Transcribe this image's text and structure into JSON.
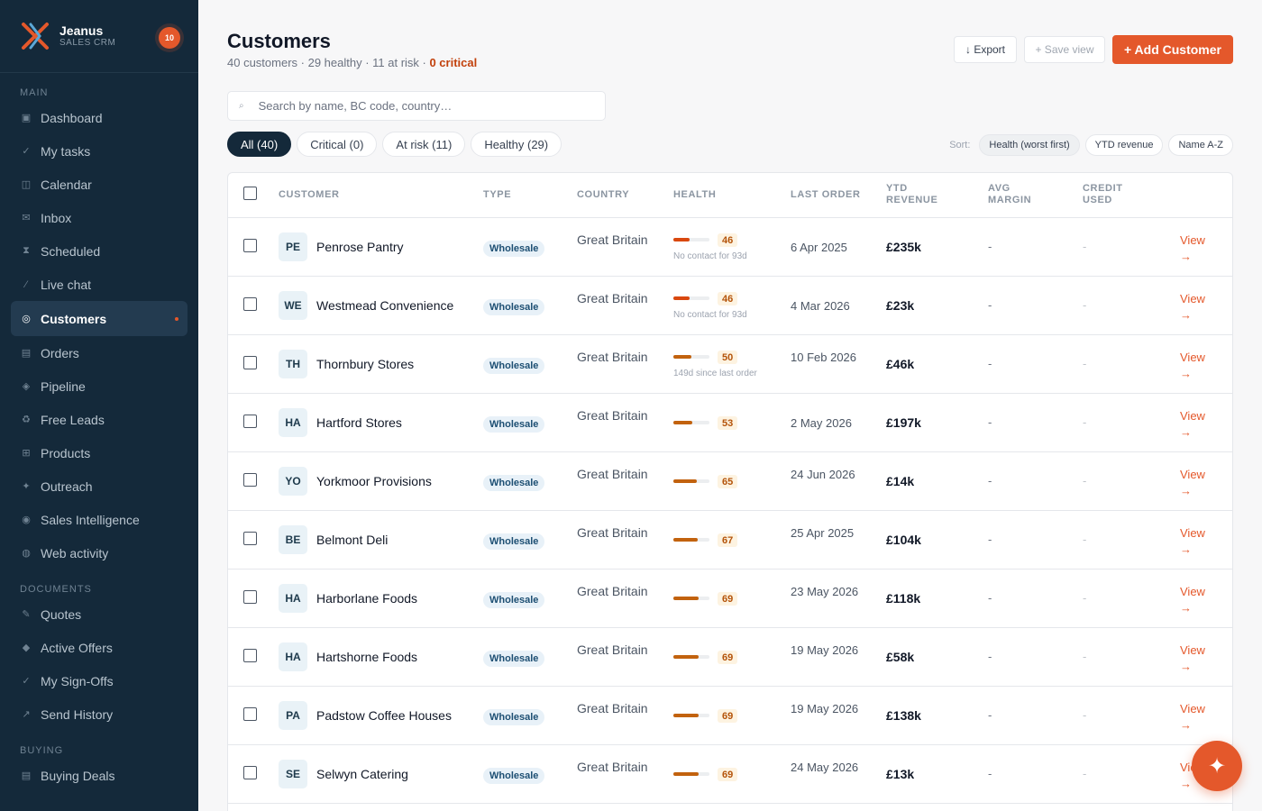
{
  "brand": {
    "name": "Jeanus",
    "subtitle": "SALES CRM",
    "notifications": "10"
  },
  "nav": {
    "main_label": "MAIN",
    "main": [
      {
        "label": "Dashboard",
        "icon": "dashboard-icon",
        "glyph": "▣"
      },
      {
        "label": "My tasks",
        "icon": "check-icon",
        "glyph": "✓"
      },
      {
        "label": "Calendar",
        "icon": "calendar-icon",
        "glyph": "◫"
      },
      {
        "label": "Inbox",
        "icon": "mail-icon",
        "glyph": "✉"
      },
      {
        "label": "Scheduled",
        "icon": "hourglass-icon",
        "glyph": "⧗"
      },
      {
        "label": "Live chat",
        "icon": "chat-icon",
        "glyph": "⁄"
      },
      {
        "label": "Customers",
        "icon": "customers-icon",
        "glyph": "◎",
        "active": true
      },
      {
        "label": "Orders",
        "icon": "orders-icon",
        "glyph": "▤"
      },
      {
        "label": "Pipeline",
        "icon": "pipeline-icon",
        "glyph": "◈"
      },
      {
        "label": "Free Leads",
        "icon": "recycle-icon",
        "glyph": "♻"
      },
      {
        "label": "Products",
        "icon": "grid-icon",
        "glyph": "⊞"
      },
      {
        "label": "Outreach",
        "icon": "sparkle-icon",
        "glyph": "✦"
      },
      {
        "label": "Sales Intelligence",
        "icon": "target-icon",
        "glyph": "◉"
      },
      {
        "label": "Web activity",
        "icon": "globe-icon",
        "glyph": "◍"
      }
    ],
    "docs_label": "DOCUMENTS",
    "docs": [
      {
        "label": "Quotes",
        "icon": "pen-icon",
        "glyph": "✎"
      },
      {
        "label": "Active Offers",
        "icon": "diamond-icon",
        "glyph": "◆"
      },
      {
        "label": "My Sign-Offs",
        "icon": "check-icon",
        "glyph": "✓"
      },
      {
        "label": "Send History",
        "icon": "send-icon",
        "glyph": "↗"
      }
    ],
    "buying_label": "BUYING",
    "buying": [
      {
        "label": "Buying Deals",
        "icon": "deals-icon",
        "glyph": "▤"
      }
    ]
  },
  "header": {
    "title": "Customers",
    "summary": "40 customers · 29 healthy · 11 at risk · ",
    "critical": "0 critical",
    "export_label": "↓ Export",
    "save_view_label": "+ Save view",
    "add_label": "+ Add Customer"
  },
  "search": {
    "placeholder": "Search by name, BC code, country…",
    "icon": "search-icon",
    "glyph": "⌕"
  },
  "filters": [
    "All (40)",
    "Critical (0)",
    "At risk (11)",
    "Healthy (29)"
  ],
  "sort": {
    "label": "Sort:",
    "options": [
      "Health (worst first)",
      "YTD revenue",
      "Name A-Z"
    ],
    "active": 0
  },
  "columns": {
    "customer": "CUSTOMER",
    "type": "TYPE",
    "country": "COUNTRY",
    "health": "HEALTH",
    "last_order": "LAST ORDER",
    "ytd": "YTD REVENUE",
    "margin": "AVG MARGIN",
    "credit": "CREDIT USED"
  },
  "colors": {
    "accent": "#e4582b",
    "sidebar": "#14293a",
    "health_bar": "#c2620e"
  },
  "rows": [
    {
      "initials": "PE",
      "name": "Penrose Pantry",
      "type": "Wholesale",
      "country": "Great Britain",
      "health": 46,
      "note": "No contact for 93d",
      "last_order": "6 Apr 2025",
      "ytd": "£235k",
      "margin": "-",
      "credit": "-",
      "view": "View",
      "arrow": "→"
    },
    {
      "initials": "WE",
      "name": "Westmead Convenience",
      "type": "Wholesale",
      "country": "Great Britain",
      "health": 46,
      "note": "No contact for 93d",
      "last_order": "4 Mar 2026",
      "ytd": "£23k",
      "margin": "-",
      "credit": "-",
      "view": "View",
      "arrow": "→"
    },
    {
      "initials": "TH",
      "name": "Thornbury Stores",
      "type": "Wholesale",
      "country": "Great Britain",
      "health": 50,
      "note": "149d since last order",
      "last_order": "10 Feb 2026",
      "ytd": "£46k",
      "margin": "-",
      "credit": "-",
      "view": "View",
      "arrow": "→"
    },
    {
      "initials": "HA",
      "name": "Hartford Stores",
      "type": "Wholesale",
      "country": "Great Britain",
      "health": 53,
      "note": "",
      "last_order": "2 May 2026",
      "ytd": "£197k",
      "margin": "-",
      "credit": "-",
      "view": "View",
      "arrow": "→"
    },
    {
      "initials": "YO",
      "name": "Yorkmoor Provisions",
      "type": "Wholesale",
      "country": "Great Britain",
      "health": 65,
      "note": "",
      "last_order": "24 Jun 2026",
      "ytd": "£14k",
      "margin": "-",
      "credit": "-",
      "view": "View",
      "arrow": "→"
    },
    {
      "initials": "BE",
      "name": "Belmont Deli",
      "type": "Wholesale",
      "country": "Great Britain",
      "health": 67,
      "note": "",
      "last_order": "25 Apr 2025",
      "ytd": "£104k",
      "margin": "-",
      "credit": "-",
      "view": "View",
      "arrow": "→"
    },
    {
      "initials": "HA",
      "name": "Harborlane Foods",
      "type": "Wholesale",
      "country": "Great Britain",
      "health": 69,
      "note": "",
      "last_order": "23 May 2026",
      "ytd": "£118k",
      "margin": "-",
      "credit": "-",
      "view": "View",
      "arrow": "→"
    },
    {
      "initials": "HA",
      "name": "Hartshorne Foods",
      "type": "Wholesale",
      "country": "Great Britain",
      "health": 69,
      "note": "",
      "last_order": "19 May 2026",
      "ytd": "£58k",
      "margin": "-",
      "credit": "-",
      "view": "View",
      "arrow": "→"
    },
    {
      "initials": "PA",
      "name": "Padstow Coffee Houses",
      "type": "Wholesale",
      "country": "Great Britain",
      "health": 69,
      "note": "",
      "last_order": "19 May 2026",
      "ytd": "£138k",
      "margin": "-",
      "credit": "-",
      "view": "View",
      "arrow": "→"
    },
    {
      "initials": "SE",
      "name": "Selwyn Catering",
      "type": "Wholesale",
      "country": "Great Britain",
      "health": 69,
      "note": "",
      "last_order": "24 May 2026",
      "ytd": "£13k",
      "margin": "-",
      "credit": "-",
      "view": "View",
      "arrow": "→"
    }
  ],
  "fab": {
    "icon": "sparkle-icon",
    "glyph": "✦"
  }
}
